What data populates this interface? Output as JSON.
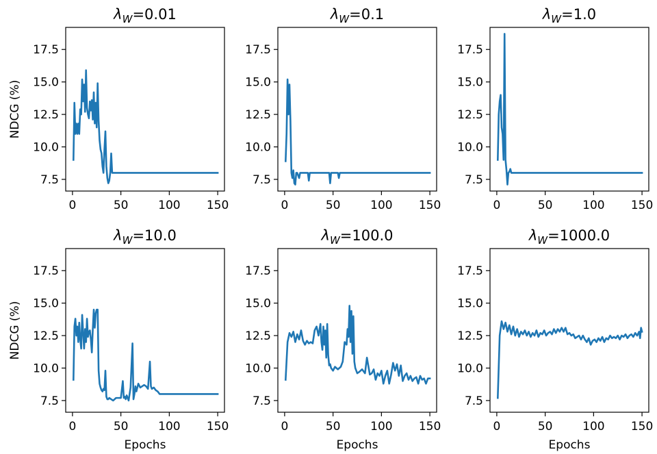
{
  "chart_data": [
    {
      "type": "line",
      "title": "λ_W=0.01",
      "title_sym": "λ",
      "title_sub": "W",
      "title_val": "=0.01",
      "xlabel": "",
      "ylabel": "NDCG (%)",
      "xlim": [
        -7,
        157
      ],
      "ylim": [
        6.6,
        19.2
      ],
      "xticks": [
        0,
        50,
        100,
        150
      ],
      "yticks": [
        7.5,
        10.0,
        12.5,
        15.0,
        17.5
      ],
      "ytick_labels": [
        "7.5",
        "10.0",
        "12.5",
        "15.0",
        "17.5"
      ],
      "series_color": "#1f77b4",
      "x": [
        1,
        2,
        3,
        4,
        5,
        6,
        7,
        8,
        9,
        10,
        11,
        12,
        13,
        14,
        15,
        16,
        17,
        18,
        19,
        20,
        21,
        22,
        23,
        24,
        25,
        26,
        27,
        28,
        29,
        30,
        31,
        32,
        33,
        34,
        35,
        36,
        37,
        38,
        39,
        40,
        41,
        42,
        43,
        44,
        45,
        46,
        47,
        48,
        49,
        50,
        60,
        80,
        100,
        120,
        150
      ],
      "y": [
        9.0,
        13.4,
        11.0,
        11.8,
        11.0,
        11.8,
        11.0,
        12.9,
        12.5,
        15.2,
        13.5,
        14.8,
        12.7,
        15.9,
        13.0,
        12.5,
        12.2,
        13.5,
        12.8,
        13.6,
        12.1,
        14.2,
        11.8,
        13.4,
        11.5,
        14.9,
        12.0,
        10.5,
        9.8,
        9.5,
        8.5,
        8.0,
        9.8,
        11.2,
        8.5,
        7.6,
        7.2,
        7.4,
        8.0,
        9.5,
        8.0,
        8.0,
        8.0,
        8.0,
        8.0,
        8.0,
        8.0,
        8.0,
        8.0,
        8.0,
        8.0,
        8.0,
        8.0,
        8.0,
        8.0
      ]
    },
    {
      "type": "line",
      "title": "λ_W=0.1",
      "title_sym": "λ",
      "title_sub": "W",
      "title_val": "=0.1",
      "xlabel": "",
      "ylabel": "",
      "xlim": [
        -7,
        157
      ],
      "ylim": [
        6.6,
        19.2
      ],
      "xticks": [
        0,
        50,
        100,
        150
      ],
      "yticks": [
        7.5,
        10.0,
        12.5,
        15.0,
        17.5
      ],
      "ytick_labels": [
        "7.5",
        "10.0",
        "12.5",
        "15.0",
        "17.5"
      ],
      "series_color": "#1f77b4",
      "x": [
        1,
        2,
        3,
        4,
        5,
        6,
        7,
        8,
        9,
        10,
        11,
        12,
        13,
        14,
        15,
        16,
        17,
        18,
        24,
        25,
        26,
        27,
        46,
        47,
        48,
        49,
        55,
        56,
        57,
        60,
        80,
        100,
        120,
        150
      ],
      "y": [
        8.9,
        11.0,
        15.2,
        12.5,
        14.8,
        12.0,
        8.0,
        7.6,
        8.2,
        7.2,
        7.1,
        8.0,
        8.0,
        7.8,
        7.6,
        8.0,
        8.0,
        8.0,
        8.0,
        7.4,
        8.0,
        8.0,
        8.0,
        7.2,
        8.0,
        8.0,
        8.0,
        7.6,
        8.0,
        8.0,
        8.0,
        8.0,
        8.0,
        8.0
      ]
    },
    {
      "type": "line",
      "title": "λ_W=1.0",
      "title_sym": "λ",
      "title_sub": "W",
      "title_val": "=1.0",
      "xlabel": "",
      "ylabel": "",
      "xlim": [
        -7,
        157
      ],
      "ylim": [
        6.6,
        19.2
      ],
      "xticks": [
        0,
        50,
        100,
        150
      ],
      "yticks": [
        7.5,
        10.0,
        12.5,
        15.0,
        17.5
      ],
      "ytick_labels": [
        "7.5",
        "10.0",
        "12.5",
        "15.0",
        "17.5"
      ],
      "series_color": "#1f77b4",
      "x": [
        1,
        2,
        3,
        4,
        5,
        6,
        7,
        8,
        9,
        10,
        11,
        12,
        13,
        14,
        15,
        16,
        17,
        18,
        20,
        30,
        60,
        100,
        150
      ],
      "y": [
        9.0,
        12.5,
        13.5,
        14.0,
        11.5,
        11.0,
        9.0,
        18.7,
        9.0,
        8.2,
        7.1,
        8.0,
        8.1,
        8.3,
        8.0,
        8.0,
        8.0,
        8.0,
        8.0,
        8.0,
        8.0,
        8.0,
        8.0
      ]
    },
    {
      "type": "line",
      "title": "λ_W=10.0",
      "title_sym": "λ",
      "title_sub": "W",
      "title_val": "=10.0",
      "xlabel": "Epochs",
      "ylabel": "NDCG (%)",
      "xlim": [
        -7,
        157
      ],
      "ylim": [
        6.6,
        19.2
      ],
      "xticks": [
        0,
        50,
        100,
        150
      ],
      "yticks": [
        7.5,
        10.0,
        12.5,
        15.0,
        17.5
      ],
      "ytick_labels": [
        "7.5",
        "10.0",
        "12.5",
        "15.0",
        "17.5"
      ],
      "series_color": "#1f77b4",
      "x": [
        1,
        2,
        3,
        4,
        5,
        6,
        7,
        8,
        9,
        10,
        11,
        12,
        13,
        14,
        15,
        16,
        17,
        18,
        19,
        20,
        21,
        22,
        23,
        24,
        25,
        26,
        27,
        28,
        29,
        30,
        31,
        32,
        33,
        34,
        35,
        36,
        37,
        38,
        40,
        42,
        45,
        48,
        50,
        52,
        53,
        54,
        55,
        56,
        58,
        60,
        62,
        63,
        64,
        65,
        66,
        68,
        70,
        72,
        74,
        76,
        78,
        80,
        81,
        82,
        84,
        86,
        88,
        90,
        100,
        120,
        150
      ],
      "y": [
        9.1,
        13.2,
        13.8,
        12.5,
        13.2,
        12.0,
        13.5,
        12.2,
        11.5,
        14.1,
        12.8,
        11.5,
        13.0,
        12.0,
        13.8,
        12.4,
        12.8,
        12.9,
        12.2,
        11.2,
        13.0,
        14.5,
        13.1,
        14.2,
        14.5,
        14.5,
        9.8,
        8.8,
        8.5,
        8.3,
        8.2,
        8.4,
        8.3,
        9.8,
        7.8,
        7.6,
        7.6,
        7.7,
        7.6,
        7.5,
        7.7,
        7.7,
        7.7,
        9.0,
        7.7,
        7.8,
        7.6,
        7.9,
        7.5,
        8.5,
        11.9,
        7.6,
        8.0,
        8.6,
        8.2,
        8.8,
        8.5,
        8.6,
        8.7,
        8.6,
        8.4,
        10.5,
        8.6,
        8.4,
        8.5,
        8.3,
        8.2,
        8.0,
        8.0,
        8.0,
        8.0
      ]
    },
    {
      "type": "line",
      "title": "λ_W=100.0",
      "title_sym": "λ",
      "title_sub": "W",
      "title_val": "=100.0",
      "xlabel": "Epochs",
      "ylabel": "",
      "xlim": [
        -7,
        157
      ],
      "ylim": [
        6.6,
        19.2
      ],
      "xticks": [
        0,
        50,
        100,
        150
      ],
      "yticks": [
        7.5,
        10.0,
        12.5,
        15.0,
        17.5
      ],
      "ytick_labels": [
        "7.5",
        "10.0",
        "12.5",
        "15.0",
        "17.5"
      ],
      "series_color": "#1f77b4",
      "x": [
        1,
        3,
        5,
        7,
        9,
        11,
        13,
        15,
        17,
        19,
        21,
        23,
        25,
        27,
        29,
        31,
        33,
        35,
        37,
        38,
        39,
        40,
        41,
        42,
        43,
        44,
        45,
        46,
        47,
        48,
        50,
        52,
        55,
        58,
        60,
        62,
        64,
        65,
        66,
        67,
        68,
        69,
        70,
        71,
        72,
        73,
        74,
        75,
        77,
        80,
        83,
        85,
        88,
        90,
        92,
        94,
        96,
        98,
        100,
        102,
        104,
        106,
        108,
        110,
        112,
        114,
        116,
        118,
        120,
        122,
        124,
        126,
        128,
        130,
        132,
        134,
        136,
        138,
        140,
        142,
        144,
        146,
        148,
        150
      ],
      "y": [
        9.1,
        12.0,
        12.7,
        12.4,
        12.8,
        12.0,
        12.6,
        12.2,
        12.9,
        12.1,
        11.8,
        12.1,
        11.9,
        12.0,
        11.9,
        12.9,
        13.2,
        12.5,
        13.4,
        12.0,
        11.4,
        13.2,
        11.8,
        12.9,
        10.8,
        13.4,
        11.0,
        10.2,
        10.3,
        10.0,
        9.8,
        10.1,
        9.9,
        10.1,
        10.5,
        12.0,
        11.8,
        13.0,
        12.4,
        14.8,
        12.0,
        14.4,
        11.1,
        14.0,
        10.5,
        10.0,
        9.8,
        9.6,
        9.7,
        9.9,
        9.6,
        10.8,
        9.5,
        9.6,
        9.9,
        9.1,
        9.6,
        9.4,
        9.8,
        8.8,
        9.4,
        9.8,
        8.8,
        9.5,
        10.4,
        9.8,
        10.3,
        9.4,
        10.2,
        9.0,
        9.4,
        9.6,
        9.1,
        9.4,
        9.0,
        9.2,
        9.3,
        8.8,
        9.4,
        9.1,
        9.2,
        8.8,
        9.2,
        9.2
      ]
    },
    {
      "type": "line",
      "title": "λ_W=1000.0",
      "title_sym": "λ",
      "title_sub": "W",
      "title_val": "=1000.0",
      "xlabel": "Epochs",
      "ylabel": "",
      "xlim": [
        -7,
        157
      ],
      "ylim": [
        6.6,
        19.2
      ],
      "xticks": [
        0,
        50,
        100,
        150
      ],
      "yticks": [
        7.5,
        10.0,
        12.5,
        15.0,
        17.5
      ],
      "ytick_labels": [
        "7.5",
        "10.0",
        "12.5",
        "15.0",
        "17.5"
      ],
      "series_color": "#1f77b4",
      "x": [
        1,
        3,
        5,
        7,
        9,
        11,
        13,
        15,
        17,
        19,
        21,
        23,
        25,
        27,
        29,
        31,
        33,
        35,
        37,
        39,
        41,
        43,
        45,
        47,
        49,
        51,
        53,
        55,
        57,
        59,
        61,
        63,
        65,
        67,
        69,
        71,
        73,
        75,
        77,
        79,
        81,
        83,
        85,
        87,
        89,
        91,
        93,
        95,
        97,
        99,
        101,
        103,
        105,
        107,
        109,
        111,
        113,
        115,
        117,
        119,
        121,
        123,
        125,
        127,
        129,
        131,
        133,
        135,
        137,
        139,
        141,
        143,
        145,
        147,
        148,
        149,
        150
      ],
      "y": [
        7.7,
        12.5,
        13.6,
        13.0,
        13.5,
        12.8,
        13.3,
        12.6,
        13.2,
        12.5,
        13.0,
        12.4,
        12.8,
        12.6,
        12.9,
        12.5,
        12.8,
        12.4,
        12.7,
        12.5,
        12.9,
        12.4,
        12.7,
        12.6,
        12.9,
        12.5,
        12.7,
        12.8,
        12.6,
        13.0,
        12.7,
        13.0,
        12.8,
        13.1,
        12.8,
        13.1,
        12.6,
        12.7,
        12.5,
        12.6,
        12.3,
        12.4,
        12.5,
        12.2,
        12.5,
        12.2,
        12.0,
        12.3,
        11.8,
        12.1,
        12.2,
        12.0,
        12.3,
        12.1,
        12.4,
        12.0,
        12.3,
        12.2,
        12.5,
        12.3,
        12.4,
        12.3,
        12.5,
        12.2,
        12.5,
        12.4,
        12.6,
        12.3,
        12.5,
        12.6,
        12.4,
        12.7,
        12.5,
        12.8,
        12.3,
        13.1,
        12.8
      ]
    }
  ]
}
